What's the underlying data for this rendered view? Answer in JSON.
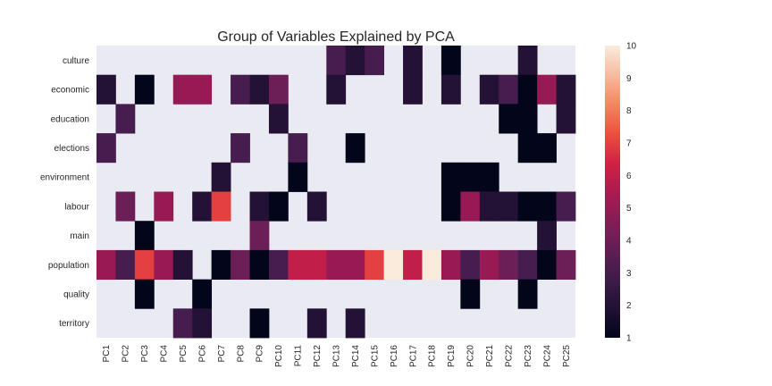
{
  "chart_data": {
    "type": "heatmap",
    "title": "Group of Variables Explained by PCA",
    "xlabel": "",
    "ylabel": "",
    "x_categories": [
      "PC1",
      "PC2",
      "PC3",
      "PC4",
      "PC5",
      "PC6",
      "PC7",
      "PC8",
      "PC9",
      "PC10",
      "PC11",
      "PC12",
      "PC13",
      "PC14",
      "PC15",
      "PC16",
      "PC17",
      "PC18",
      "PC19",
      "PC20",
      "PC21",
      "PC22",
      "PC23",
      "PC24",
      "PC25"
    ],
    "y_categories": [
      "culture",
      "economic",
      "education",
      "elections",
      "environment",
      "labour",
      "main",
      "population",
      "quality",
      "territory"
    ],
    "values": [
      [
        null,
        null,
        null,
        null,
        null,
        null,
        null,
        null,
        null,
        null,
        null,
        null,
        3,
        2,
        3,
        null,
        2,
        null,
        1,
        null,
        null,
        null,
        2,
        null,
        null
      ],
      [
        2,
        null,
        1,
        null,
        5,
        5,
        null,
        3,
        2,
        4,
        null,
        null,
        2,
        null,
        null,
        null,
        2,
        null,
        2,
        null,
        2,
        3,
        1,
        5,
        2
      ],
      [
        null,
        3,
        null,
        null,
        null,
        null,
        null,
        null,
        null,
        2,
        null,
        null,
        null,
        null,
        null,
        null,
        null,
        null,
        null,
        null,
        null,
        1,
        1,
        null,
        2
      ],
      [
        3,
        null,
        null,
        null,
        null,
        null,
        null,
        3,
        null,
        null,
        3,
        null,
        null,
        1,
        null,
        null,
        null,
        null,
        null,
        null,
        null,
        null,
        1,
        1,
        null
      ],
      [
        null,
        null,
        null,
        null,
        null,
        null,
        2,
        null,
        null,
        null,
        1,
        null,
        null,
        null,
        null,
        null,
        null,
        null,
        1,
        1,
        1,
        null,
        null,
        null,
        null
      ],
      [
        null,
        4,
        null,
        5,
        null,
        2,
        7,
        null,
        2,
        1,
        null,
        2,
        null,
        null,
        null,
        null,
        null,
        null,
        1,
        5,
        2,
        2,
        1,
        1,
        3
      ],
      [
        null,
        null,
        1,
        null,
        null,
        null,
        null,
        null,
        4,
        null,
        null,
        null,
        null,
        null,
        null,
        null,
        null,
        null,
        null,
        null,
        null,
        null,
        null,
        2,
        null
      ],
      [
        5,
        3,
        7,
        5,
        2,
        null,
        1,
        4,
        1,
        3,
        6,
        6,
        5,
        5,
        7,
        10,
        6,
        10,
        5,
        3,
        5,
        4,
        3,
        1,
        4
      ],
      [
        null,
        null,
        1,
        null,
        null,
        1,
        null,
        null,
        null,
        null,
        null,
        null,
        null,
        null,
        null,
        null,
        null,
        null,
        null,
        1,
        null,
        null,
        1,
        null,
        null
      ],
      [
        null,
        null,
        null,
        null,
        3,
        2,
        null,
        null,
        1,
        null,
        null,
        2,
        null,
        2,
        null,
        null,
        null,
        null,
        null,
        null,
        null,
        null,
        null,
        null,
        null
      ]
    ],
    "colorbar": {
      "min": 1,
      "max": 10,
      "ticks": [
        "1",
        "2",
        "3",
        "4",
        "5",
        "6",
        "7",
        "8",
        "9",
        "10"
      ],
      "colormap": "rocket"
    },
    "missing_color": "#eaeaf2"
  }
}
